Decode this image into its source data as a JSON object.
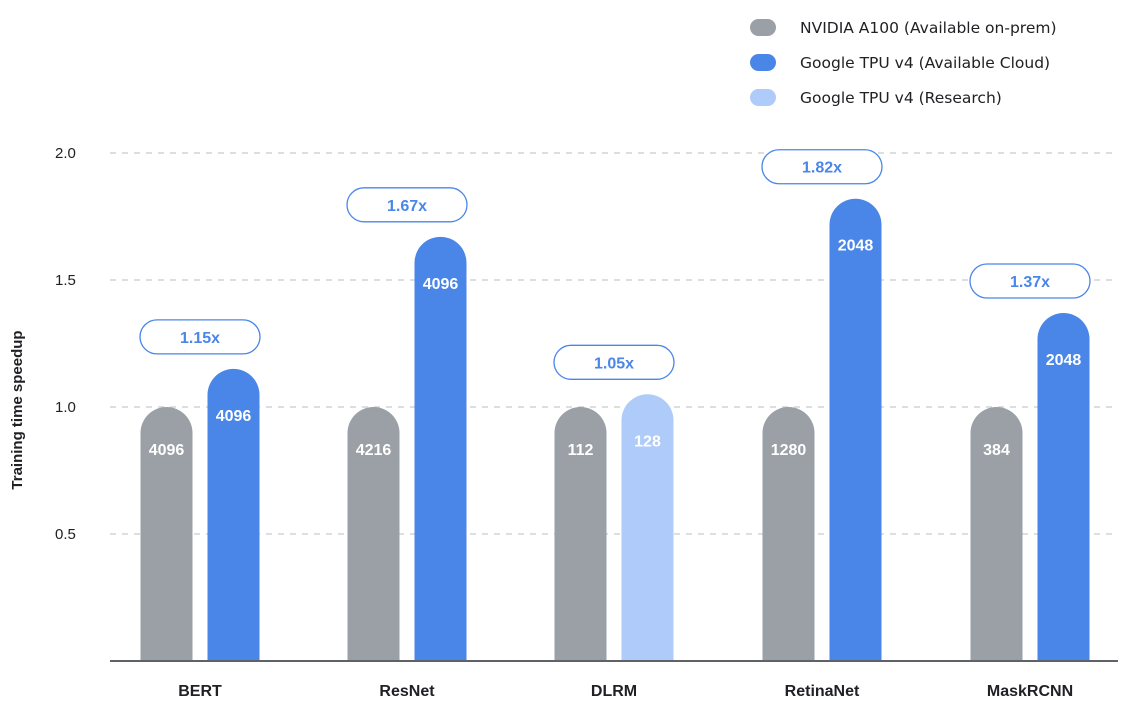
{
  "chart_data": {
    "type": "bar",
    "title": "",
    "xlabel": "",
    "ylabel": "Training time speedup",
    "ylim": [
      0,
      2.0
    ],
    "yticks": [
      0.5,
      1.0,
      1.5,
      2.0
    ],
    "grid": true,
    "legend_position": "top-right",
    "categories": [
      "BERT",
      "ResNet",
      "DLRM",
      "RetinaNet",
      "MaskRCNN"
    ],
    "series_defs": [
      {
        "name": "NVIDIA A100 (Available on-prem)",
        "color": "#9aa0a6"
      },
      {
        "name": "Google TPU v4 (Available Cloud)",
        "color": "#4a86e8"
      },
      {
        "name": "Google TPU v4 (Research)",
        "color": "#aecbfa"
      }
    ],
    "groups": [
      {
        "category": "BERT",
        "speedup_label": "1.15x",
        "bars": [
          {
            "series": 0,
            "value": 1.0,
            "chips": "4096"
          },
          {
            "series": 1,
            "value": 1.15,
            "chips": "4096"
          }
        ]
      },
      {
        "category": "ResNet",
        "speedup_label": "1.67x",
        "bars": [
          {
            "series": 0,
            "value": 1.0,
            "chips": "4216"
          },
          {
            "series": 1,
            "value": 1.67,
            "chips": "4096"
          }
        ]
      },
      {
        "category": "DLRM",
        "speedup_label": "1.05x",
        "bars": [
          {
            "series": 0,
            "value": 1.0,
            "chips": "112"
          },
          {
            "series": 2,
            "value": 1.05,
            "chips": "128"
          }
        ]
      },
      {
        "category": "RetinaNet",
        "speedup_label": "1.82x",
        "bars": [
          {
            "series": 0,
            "value": 1.0,
            "chips": "1280"
          },
          {
            "series": 1,
            "value": 1.82,
            "chips": "2048"
          }
        ]
      },
      {
        "category": "MaskRCNN",
        "speedup_label": "1.37x",
        "bars": [
          {
            "series": 0,
            "value": 1.0,
            "chips": "384"
          },
          {
            "series": 1,
            "value": 1.37,
            "chips": "2048"
          }
        ]
      }
    ]
  }
}
